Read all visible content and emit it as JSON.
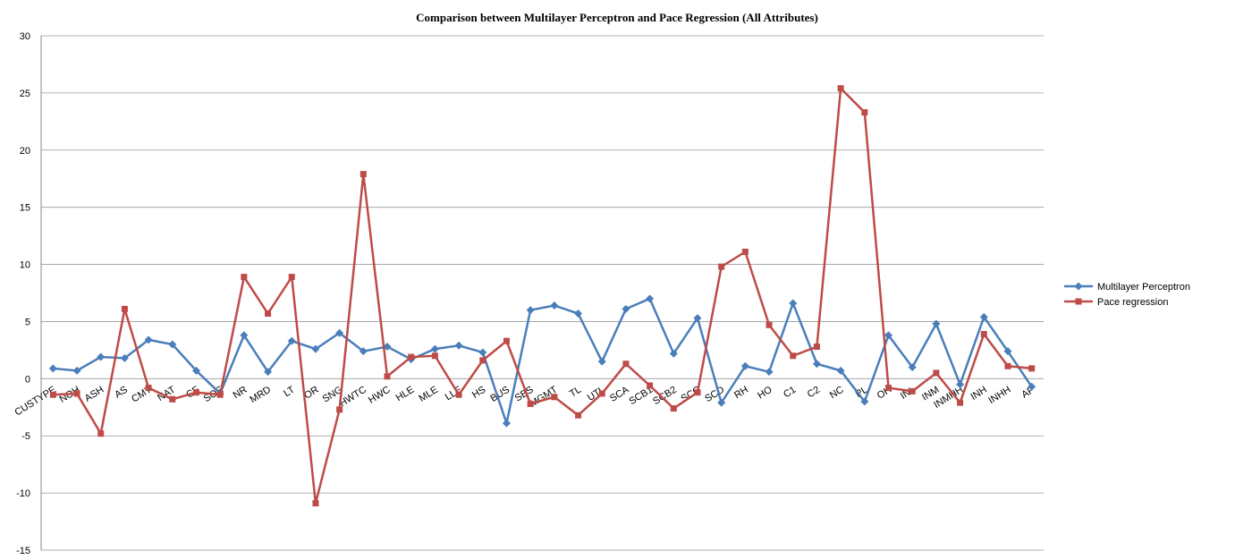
{
  "chart_data": {
    "type": "line",
    "title": "Comparison between Multilayer Perceptron and Pace Regression (All Attributes)",
    "categories": [
      "CUSTYPE",
      "NOH",
      "ASH",
      "AS",
      "CMT",
      "NAT",
      "CF",
      "SOE",
      "NR",
      "MRD",
      "LT",
      "OR",
      "SNG",
      "HWTC",
      "HWC",
      "HLE",
      "MLE",
      "LLE",
      "HS",
      "BUS",
      "SBS",
      "MGMT",
      "TL",
      "UTL",
      "SCA",
      "SCB1",
      "SCB2",
      "SCC",
      "SCD",
      "RH",
      "HO",
      "C1",
      "C2",
      "NC",
      "PL",
      "OH",
      "INL",
      "INM",
      "INMHH",
      "INH",
      "INHH",
      "AP"
    ],
    "series": [
      {
        "name": "Multilayer Perceptron",
        "color": "#4a7ebb",
        "marker": "diamond",
        "values": [
          0.9,
          0.7,
          1.9,
          1.8,
          3.4,
          3.0,
          0.7,
          -1.3,
          3.8,
          0.6,
          3.3,
          2.6,
          4.0,
          2.4,
          2.8,
          1.7,
          2.6,
          2.9,
          2.3,
          -3.9,
          6.0,
          6.4,
          5.7,
          1.5,
          6.1,
          7.0,
          2.2,
          5.3,
          -2.1,
          1.1,
          0.6,
          6.6,
          1.3,
          0.7,
          -2.0,
          3.8,
          1.0,
          4.8,
          -0.5,
          5.4,
          2.4,
          -0.7
        ]
      },
      {
        "name": "Pace regression",
        "color": "#be4b48",
        "marker": "square",
        "values": [
          -1.4,
          -1.3,
          -4.8,
          6.1,
          -0.8,
          -1.8,
          -1.2,
          -1.4,
          8.9,
          5.7,
          8.9,
          -10.9,
          -2.7,
          17.9,
          0.2,
          1.9,
          2.0,
          -1.4,
          1.6,
          3.3,
          -2.2,
          -1.6,
          -3.2,
          -1.3,
          1.3,
          -0.6,
          -2.6,
          -1.2,
          9.8,
          11.1,
          4.7,
          2.0,
          2.8,
          25.4,
          23.3,
          -0.8,
          -1.1,
          0.5,
          -2.1,
          3.9,
          1.1,
          0.9
        ]
      }
    ],
    "ylim": [
      -15,
      30
    ],
    "yticks": [
      -15,
      -10,
      -5,
      0,
      5,
      10,
      15,
      20,
      25,
      30
    ],
    "grid": true,
    "legend": "right"
  }
}
